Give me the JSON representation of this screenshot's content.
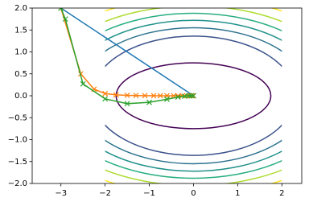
{
  "chart_data": {
    "type": "line",
    "xlim": [
      -3.65,
      2.45
    ],
    "ylim": [
      -2,
      2
    ],
    "xticks": [
      {
        "value": -3,
        "label": "−3"
      },
      {
        "value": -2,
        "label": "−2"
      },
      {
        "value": -1,
        "label": "−1"
      },
      0,
      1,
      2
    ],
    "yticks": [
      {
        "value": -2,
        "label": "−2.0"
      },
      {
        "value": -1.5,
        "label": "−1.5"
      },
      {
        "value": -1,
        "label": "−1.0"
      },
      {
        "value": -0.5,
        "label": "−0.5"
      },
      {
        "value": 0,
        "label": "0.0"
      },
      {
        "value": 0.5,
        "label": "0.5"
      },
      {
        "value": 1,
        "label": "1.0"
      },
      {
        "value": 1.5,
        "label": "1.5"
      },
      {
        "value": 2,
        "label": "2.0"
      }
    ],
    "contour_x": [
      -2,
      2
    ],
    "contours": [
      {
        "color": "#440154",
        "rx": 1.75,
        "ry": 0.75
      },
      {
        "color": "#3b528b",
        "rx": 2.3,
        "ry": 1.36
      },
      {
        "color": "#2c728e",
        "rx": 2.65,
        "ry": 1.55
      },
      {
        "color": "#21918c",
        "rx": 2.95,
        "ry": 1.72
      },
      {
        "color": "#28ae80",
        "rx": 3.25,
        "ry": 1.88
      },
      {
        "color": "#addc30",
        "rx": 3.55,
        "ry": 2.05
      },
      {
        "color": "#fde725",
        "rx": 3.9,
        "ry": 2.25
      }
    ],
    "series": [
      {
        "color": "#1f77b4",
        "x": [
          -3,
          0
        ],
        "values": [
          2,
          0
        ]
      },
      {
        "color": "#ff7f0e",
        "x": [
          -3,
          -2.55,
          -2.25,
          -2.0,
          -1.75,
          -1.5,
          -1.3,
          -1.1,
          -0.9,
          -0.75,
          -0.6,
          -0.45,
          -0.35,
          -0.25,
          -0.15,
          -0.08,
          -0.03,
          0
        ],
        "values": [
          2,
          0.5,
          0.15,
          0.05,
          0.02,
          0.01,
          0.005,
          0.003,
          0.002,
          0.001,
          0.001,
          0,
          0,
          0,
          0,
          0,
          0,
          0
        ]
      },
      {
        "color": "#2ca02c",
        "x": [
          -3,
          -2.9,
          -2.5,
          -2.0,
          -1.5,
          -1.0,
          -0.6,
          -0.35,
          -0.2,
          -0.1,
          -0.05,
          0
        ],
        "values": [
          2,
          1.75,
          0.27,
          -0.07,
          -0.18,
          -0.15,
          -0.08,
          -0.03,
          -0.01,
          0,
          0,
          0
        ]
      }
    ]
  }
}
